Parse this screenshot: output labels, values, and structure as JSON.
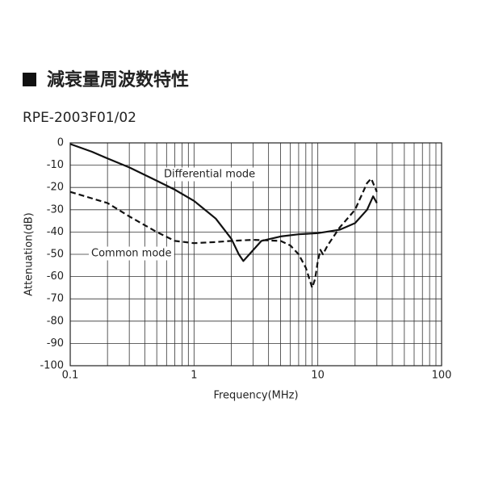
{
  "chart_data": {
    "type": "line",
    "title": "減衰量周波数特性",
    "subtitle": "RPE-2003F01/02",
    "x_label": "Frequency(MHz)",
    "y_label": "Attenuation(dB)",
    "log_x": true,
    "grid": true,
    "xlim": [
      0.1,
      100
    ],
    "xticks": [
      0.1,
      1,
      10,
      100
    ],
    "ylim": [
      -100,
      0
    ],
    "yticks": [
      0,
      -10,
      -20,
      -30,
      -40,
      -50,
      -60,
      -70,
      -80,
      -90,
      -100
    ],
    "series": [
      {
        "name": "Differential mode",
        "color": "#111111",
        "dash": false,
        "x": [
          0.1,
          0.15,
          0.2,
          0.3,
          0.5,
          0.7,
          1,
          1.5,
          2,
          2.3,
          2.5,
          2.8,
          3.5,
          5,
          7,
          10,
          15,
          20,
          25,
          28,
          30
        ],
        "values": [
          -0.5,
          -4,
          -7,
          -11,
          -17,
          -21,
          -26,
          -34,
          -43,
          -50,
          -53,
          -50,
          -44,
          -42,
          -41,
          -40.5,
          -39,
          -36,
          -30,
          -24,
          -27
        ]
      },
      {
        "name": "Common mode",
        "color": "#111111",
        "dash": true,
        "x": [
          0.1,
          0.2,
          0.3,
          0.5,
          0.7,
          1,
          1.5,
          2,
          3,
          5,
          6,
          7,
          8,
          9,
          9.5,
          10,
          10.5,
          11,
          12,
          15,
          20,
          25,
          27,
          30
        ],
        "values": [
          -22,
          -27,
          -33,
          -40,
          -44,
          -45,
          -44.5,
          -44,
          -43.5,
          -44,
          -46,
          -50,
          -56,
          -65,
          -61,
          -53,
          -48,
          -50,
          -46,
          -38,
          -30,
          -18,
          -16,
          -22
        ]
      }
    ]
  }
}
